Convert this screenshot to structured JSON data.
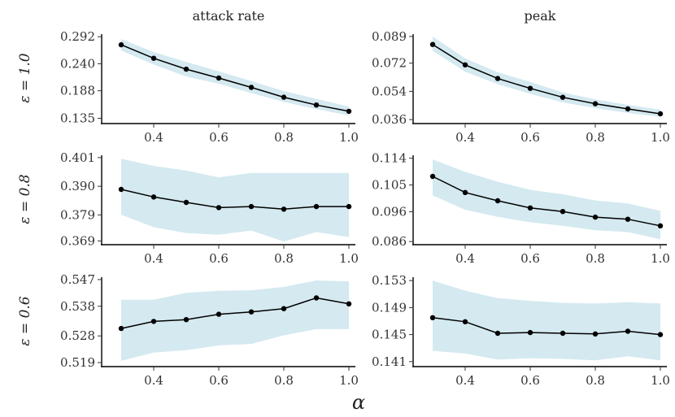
{
  "chart_data": {
    "type": "line",
    "layout": "facet-grid 3 rows x 2 columns",
    "xlabel": "α",
    "columns": [
      "attack rate",
      "peak"
    ],
    "rows": [
      "ε = 1.0",
      "ε = 0.8",
      "ε = 0.6"
    ],
    "x": [
      0.3,
      0.4,
      0.5,
      0.6,
      0.7,
      0.8,
      0.9,
      1.0
    ],
    "x_ticks": [
      "0.4",
      "0.6",
      "0.8",
      "1.0"
    ],
    "x_tick_values": [
      0.4,
      0.6,
      0.8,
      1.0
    ],
    "xlim": [
      0.24,
      1.02
    ],
    "band_color": "#d4e9f0",
    "line_color": "#000000",
    "panels": [
      {
        "row": "ε = 1.0",
        "column": "attack rate",
        "ylim": [
          0.128,
          0.297
        ],
        "y_ticks": [
          "0.135",
          "0.188",
          "0.240",
          "0.292"
        ],
        "y_tick_values": [
          0.135,
          0.188,
          0.24,
          0.292
        ],
        "values": [
          0.2765,
          0.2505,
          0.2295,
          0.2125,
          0.1945,
          0.1755,
          0.1605,
          0.1485
        ],
        "lower": [
          0.2655,
          0.2385,
          0.2155,
          0.2015,
          0.1835,
          0.1665,
          0.1525,
          0.1405
        ],
        "upper": [
          0.2875,
          0.2625,
          0.2435,
          0.2255,
          0.2065,
          0.1875,
          0.1725,
          0.1575
        ]
      },
      {
        "row": "ε = 1.0",
        "column": "peak",
        "ylim": [
          0.0345,
          0.0905
        ],
        "y_ticks": [
          "0.036",
          "0.054",
          "0.072",
          "0.089"
        ],
        "y_tick_values": [
          0.036,
          0.054,
          0.072,
          0.089
        ],
        "values": [
          0.0839,
          0.0709,
          0.0622,
          0.0559,
          0.0502,
          0.0461,
          0.0428,
          0.0397
        ],
        "lower": [
          0.0799,
          0.0665,
          0.0586,
          0.0524,
          0.047,
          0.0433,
          0.0402,
          0.0377
        ],
        "upper": [
          0.089,
          0.075,
          0.0662,
          0.06,
          0.0533,
          0.0489,
          0.0454,
          0.0423
        ]
      },
      {
        "row": "ε = 0.8",
        "column": "attack rate",
        "ylim": [
          0.3682,
          0.4019
        ],
        "y_ticks": [
          "0.369",
          "0.379",
          "0.390",
          "0.401"
        ],
        "y_tick_values": [
          0.369,
          0.379,
          0.39,
          0.401
        ],
        "values": [
          0.3888,
          0.3859,
          0.3838,
          0.3818,
          0.3822,
          0.3812,
          0.3822,
          0.3822
        ],
        "lower": [
          0.3791,
          0.3743,
          0.372,
          0.3714,
          0.373,
          0.3688,
          0.3724,
          0.3705
        ],
        "upper": [
          0.4006,
          0.3978,
          0.396,
          0.3934,
          0.3951,
          0.3951,
          0.3951,
          0.3951
        ]
      },
      {
        "row": "ε = 0.8",
        "column": "peak",
        "ylim": [
          0.0855,
          0.115
        ],
        "y_ticks": [
          "0.086",
          "0.096",
          "0.105",
          "0.114"
        ],
        "y_tick_values": [
          0.086,
          0.096,
          0.105,
          0.114
        ],
        "values": [
          0.1079,
          0.1025,
          0.0997,
          0.0973,
          0.0961,
          0.0942,
          0.0935,
          0.0913
        ],
        "lower": [
          0.1015,
          0.0967,
          0.0943,
          0.0925,
          0.0913,
          0.0898,
          0.0892,
          0.0868
        ],
        "upper": [
          0.1136,
          0.1094,
          0.1061,
          0.1034,
          0.1019,
          0.0998,
          0.0988,
          0.0963
        ]
      },
      {
        "row": "ε = 0.6",
        "column": "attack rate",
        "ylim": [
          0.5182,
          0.5478
        ],
        "y_ticks": [
          "0.519",
          "0.528",
          "0.538",
          "0.547"
        ],
        "y_tick_values": [
          0.519,
          0.528,
          0.538,
          0.547
        ],
        "values": [
          0.5305,
          0.5329,
          0.5335,
          0.5353,
          0.5361,
          0.5372,
          0.5408,
          0.5388
        ],
        "lower": [
          0.5196,
          0.5224,
          0.5232,
          0.5248,
          0.5253,
          0.5282,
          0.5303,
          0.5303
        ],
        "upper": [
          0.5402,
          0.5402,
          0.5425,
          0.5432,
          0.5434,
          0.5445,
          0.5467,
          0.5464
        ]
      },
      {
        "row": "ε = 0.6",
        "column": "peak",
        "ylim": [
          0.1405,
          0.1535
        ],
        "y_ticks": [
          "0.141",
          "0.145",
          "0.149",
          "0.153"
        ],
        "y_tick_values": [
          0.141,
          0.145,
          0.149,
          0.153
        ],
        "values": [
          0.1475,
          0.1469,
          0.1452,
          0.1453,
          0.1452,
          0.1451,
          0.1455,
          0.145
        ],
        "lower": [
          0.1426,
          0.1422,
          0.1413,
          0.1415,
          0.1414,
          0.1412,
          0.1418,
          0.1412
        ],
        "upper": [
          0.153,
          0.1515,
          0.1504,
          0.15,
          0.1497,
          0.1496,
          0.1498,
          0.1496
        ]
      }
    ]
  }
}
